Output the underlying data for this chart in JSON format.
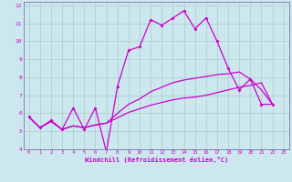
{
  "xlabel": "Windchill (Refroidissement éolien,°C)",
  "bg_color": "#cce8ee",
  "line_color": "#cc00cc",
  "grid_color": "#aacccc",
  "xlim": [
    -0.5,
    23.5
  ],
  "ylim": [
    4,
    12.2
  ],
  "xticks": [
    0,
    1,
    2,
    3,
    4,
    5,
    6,
    7,
    8,
    9,
    10,
    11,
    12,
    13,
    14,
    15,
    16,
    17,
    18,
    19,
    20,
    21,
    22,
    23
  ],
  "yticks": [
    4,
    5,
    6,
    7,
    8,
    9,
    10,
    11,
    12
  ],
  "line1_x": [
    0,
    1,
    2,
    3,
    4,
    5,
    6,
    7,
    8,
    9,
    10,
    11,
    12,
    13,
    14,
    15,
    16,
    17,
    18,
    19,
    20,
    21,
    22
  ],
  "line1_y": [
    5.8,
    5.2,
    5.6,
    5.1,
    6.3,
    5.1,
    6.3,
    3.85,
    7.5,
    9.5,
    9.7,
    11.2,
    10.9,
    11.3,
    11.7,
    10.7,
    11.3,
    10.0,
    8.5,
    7.3,
    7.9,
    6.5,
    6.5
  ],
  "line2_x": [
    0,
    1,
    2,
    3,
    4,
    5,
    6,
    7,
    8,
    9,
    10,
    11,
    12,
    13,
    14,
    15,
    16,
    17,
    18,
    19,
    20,
    21,
    22
  ],
  "line2_y": [
    5.8,
    5.2,
    5.55,
    5.1,
    5.3,
    5.2,
    5.35,
    5.45,
    5.75,
    6.05,
    6.25,
    6.45,
    6.6,
    6.75,
    6.85,
    6.9,
    7.0,
    7.15,
    7.3,
    7.45,
    7.55,
    7.7,
    6.5
  ],
  "line3_x": [
    0,
    1,
    2,
    3,
    4,
    5,
    6,
    7,
    8,
    9,
    10,
    11,
    12,
    13,
    14,
    15,
    16,
    17,
    18,
    19,
    20,
    21,
    22
  ],
  "line3_y": [
    5.8,
    5.2,
    5.55,
    5.1,
    5.3,
    5.2,
    5.35,
    5.45,
    6.0,
    6.5,
    6.8,
    7.2,
    7.45,
    7.7,
    7.85,
    7.95,
    8.05,
    8.15,
    8.2,
    8.3,
    7.9,
    7.3,
    6.5
  ]
}
